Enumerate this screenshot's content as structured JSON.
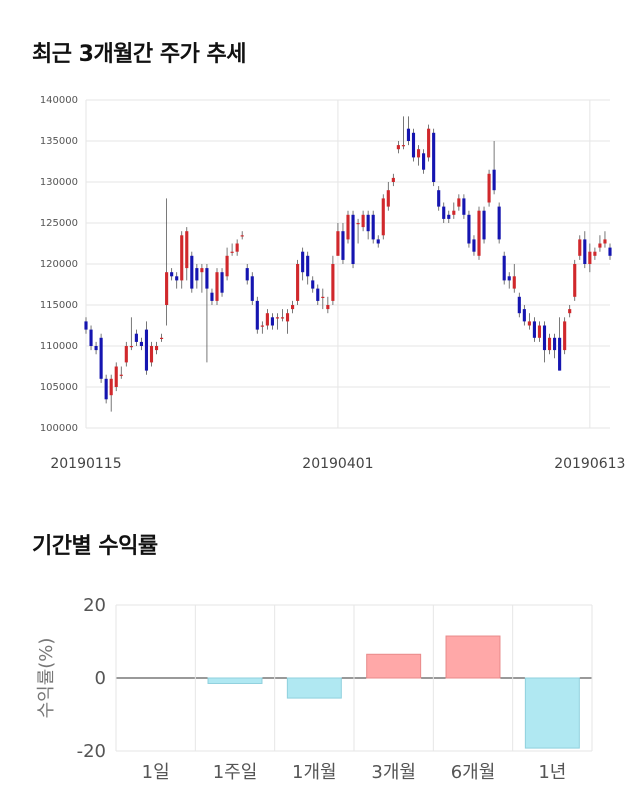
{
  "titles": {
    "price_trend": "최근 3개월간 주가 추세",
    "returns": "기간별 수익률"
  },
  "colors": {
    "up": "#d0282c",
    "down": "#1515b0",
    "wick": "#555555",
    "grid": "#e6e6e6",
    "positive_bar": "#ffa8a8",
    "negative_bar": "#b0e8f2"
  },
  "chart_data": [
    {
      "type": "candlestick",
      "title": "최근 3개월간 주가 추세",
      "ylim": [
        100000,
        140000
      ],
      "yticks": [
        100000,
        105000,
        110000,
        115000,
        120000,
        125000,
        130000,
        135000,
        140000
      ],
      "x_tick_labels": [
        {
          "label": "20190115",
          "index": 0
        },
        {
          "label": "20190401",
          "index": 50
        },
        {
          "label": "20190613",
          "index": 100
        }
      ],
      "candles": [
        [
          113000,
          112000,
          113500,
          111500
        ],
        [
          112000,
          110000,
          112500,
          109500
        ],
        [
          110000,
          109500,
          110500,
          109000
        ],
        [
          111000,
          106000,
          111500,
          105500
        ],
        [
          106000,
          103500,
          106500,
          103000
        ],
        [
          104000,
          106000,
          106500,
          102000
        ],
        [
          105000,
          107500,
          108000,
          104500
        ],
        [
          106500,
          106500,
          107500,
          106000
        ],
        [
          108000,
          110000,
          110500,
          107500
        ],
        [
          110000,
          110000,
          113500,
          109500
        ],
        [
          111500,
          110500,
          112000,
          110000
        ],
        [
          110500,
          110000,
          111000,
          109500
        ],
        [
          112000,
          107000,
          113000,
          106500
        ],
        [
          108000,
          110000,
          110500,
          107500
        ],
        [
          109500,
          110000,
          110500,
          109000
        ],
        [
          111000,
          111000,
          111500,
          110500
        ],
        [
          115000,
          119000,
          128000,
          112500
        ],
        [
          119000,
          118500,
          119500,
          118000
        ],
        [
          118500,
          118000,
          119000,
          117000
        ],
        [
          118000,
          123500,
          124000,
          117000
        ],
        [
          119500,
          124000,
          124500,
          118000
        ],
        [
          121000,
          117000,
          121500,
          116500
        ],
        [
          119500,
          118000,
          120000,
          117000
        ],
        [
          119000,
          119500,
          120000,
          116500
        ],
        [
          119500,
          117000,
          120000,
          108000
        ],
        [
          116500,
          115500,
          117000,
          115000
        ],
        [
          115500,
          119000,
          119500,
          115000
        ],
        [
          119000,
          116500,
          119500,
          116000
        ],
        [
          118500,
          121000,
          122000,
          118000
        ],
        [
          121500,
          121500,
          122500,
          121000
        ],
        [
          121500,
          122500,
          123000,
          121000
        ],
        [
          123500,
          123500,
          124000,
          123000
        ],
        [
          119500,
          118000,
          120000,
          117500
        ],
        [
          118500,
          115500,
          119000,
          115000
        ],
        [
          115500,
          112000,
          116000,
          111500
        ],
        [
          112500,
          112500,
          113000,
          111500
        ],
        [
          112500,
          114000,
          114500,
          112000
        ],
        [
          113500,
          112500,
          114000,
          112000
        ],
        [
          113500,
          113500,
          114000,
          112000
        ],
        [
          113500,
          113500,
          114500,
          113000
        ],
        [
          113000,
          114000,
          114500,
          111500
        ],
        [
          114500,
          115000,
          115500,
          114000
        ],
        [
          115500,
          120000,
          120500,
          115000
        ],
        [
          121500,
          119000,
          122000,
          118000
        ],
        [
          121000,
          118500,
          121500,
          117500
        ],
        [
          118000,
          117000,
          118500,
          116500
        ],
        [
          117000,
          115500,
          117500,
          115000
        ],
        [
          116000,
          116000,
          117000,
          114500
        ],
        [
          114500,
          115000,
          116000,
          114000
        ],
        [
          115500,
          120000,
          121000,
          115000
        ],
        [
          121000,
          124000,
          125000,
          121000
        ],
        [
          124000,
          120500,
          125000,
          120000
        ],
        [
          123000,
          126000,
          126500,
          122500
        ],
        [
          126000,
          120000,
          126500,
          119500
        ],
        [
          125000,
          125000,
          125500,
          122500
        ],
        [
          124500,
          126000,
          126500,
          124000
        ],
        [
          126000,
          124000,
          126500,
          123000
        ],
        [
          126000,
          123000,
          126500,
          122500
        ],
        [
          123000,
          122500,
          123500,
          122000
        ],
        [
          123500,
          128000,
          128500,
          123000
        ],
        [
          127000,
          129000,
          130000,
          126500
        ],
        [
          130000,
          130500,
          131000,
          129500
        ],
        [
          134000,
          134500,
          135000,
          133500
        ],
        [
          134500,
          134500,
          138000,
          134000
        ],
        [
          136500,
          135000,
          138000,
          134500
        ],
        [
          136000,
          133000,
          136500,
          132500
        ],
        [
          133000,
          134000,
          134500,
          132000
        ],
        [
          133500,
          131500,
          134000,
          131000
        ],
        [
          133000,
          136500,
          137000,
          132500
        ],
        [
          136000,
          130000,
          136500,
          129500
        ],
        [
          129000,
          127000,
          129500,
          126500
        ],
        [
          127000,
          125500,
          127500,
          125000
        ],
        [
          126000,
          125500,
          126500,
          125000
        ],
        [
          126000,
          126500,
          127500,
          125500
        ],
        [
          127000,
          128000,
          128500,
          126500
        ],
        [
          128000,
          126000,
          128500,
          125500
        ],
        [
          126000,
          122500,
          126500,
          122000
        ],
        [
          123000,
          121500,
          123500,
          121000
        ],
        [
          121000,
          126500,
          127000,
          120500
        ],
        [
          126500,
          123000,
          127000,
          122500
        ],
        [
          127500,
          131000,
          131500,
          127000
        ],
        [
          131500,
          129000,
          135000,
          128500
        ],
        [
          127000,
          123000,
          127500,
          122500
        ],
        [
          121000,
          118000,
          121500,
          117500
        ],
        [
          118500,
          118000,
          119000,
          117000
        ],
        [
          117000,
          118500,
          120000,
          116500
        ],
        [
          116000,
          114000,
          116500,
          113500
        ],
        [
          114500,
          113000,
          115000,
          112500
        ],
        [
          112500,
          113000,
          114000,
          112000
        ],
        [
          113000,
          111000,
          113500,
          110500
        ],
        [
          111000,
          112500,
          113000,
          110500
        ],
        [
          112500,
          109500,
          113000,
          108000
        ],
        [
          109500,
          111000,
          111500,
          109000
        ],
        [
          111000,
          109500,
          111500,
          108500
        ],
        [
          111000,
          107000,
          113500,
          107000
        ],
        [
          109500,
          113000,
          113500,
          109000
        ],
        [
          114000,
          114500,
          115000,
          113500
        ],
        [
          116000,
          120000,
          120500,
          115500
        ],
        [
          121000,
          123000,
          123500,
          120500
        ],
        [
          123000,
          120000,
          124000,
          119500
        ],
        [
          120000,
          121500,
          122500,
          119000
        ],
        [
          121000,
          121500,
          122000,
          120500
        ],
        [
          122000,
          122500,
          123500,
          121500
        ],
        [
          122500,
          123000,
          124000,
          122000
        ],
        [
          122000,
          121000,
          122500,
          120500
        ]
      ]
    },
    {
      "type": "bar",
      "title": "기간별 수익률",
      "ylabel": "수익률(%)",
      "ylim": [
        -20,
        20
      ],
      "yticks": [
        20,
        0,
        -20
      ],
      "categories": [
        "1일",
        "1주일",
        "1개월",
        "3개월",
        "6개월",
        "1년"
      ],
      "values": [
        0,
        -1.5,
        -5.5,
        6.5,
        11.5,
        -19.2
      ]
    }
  ]
}
